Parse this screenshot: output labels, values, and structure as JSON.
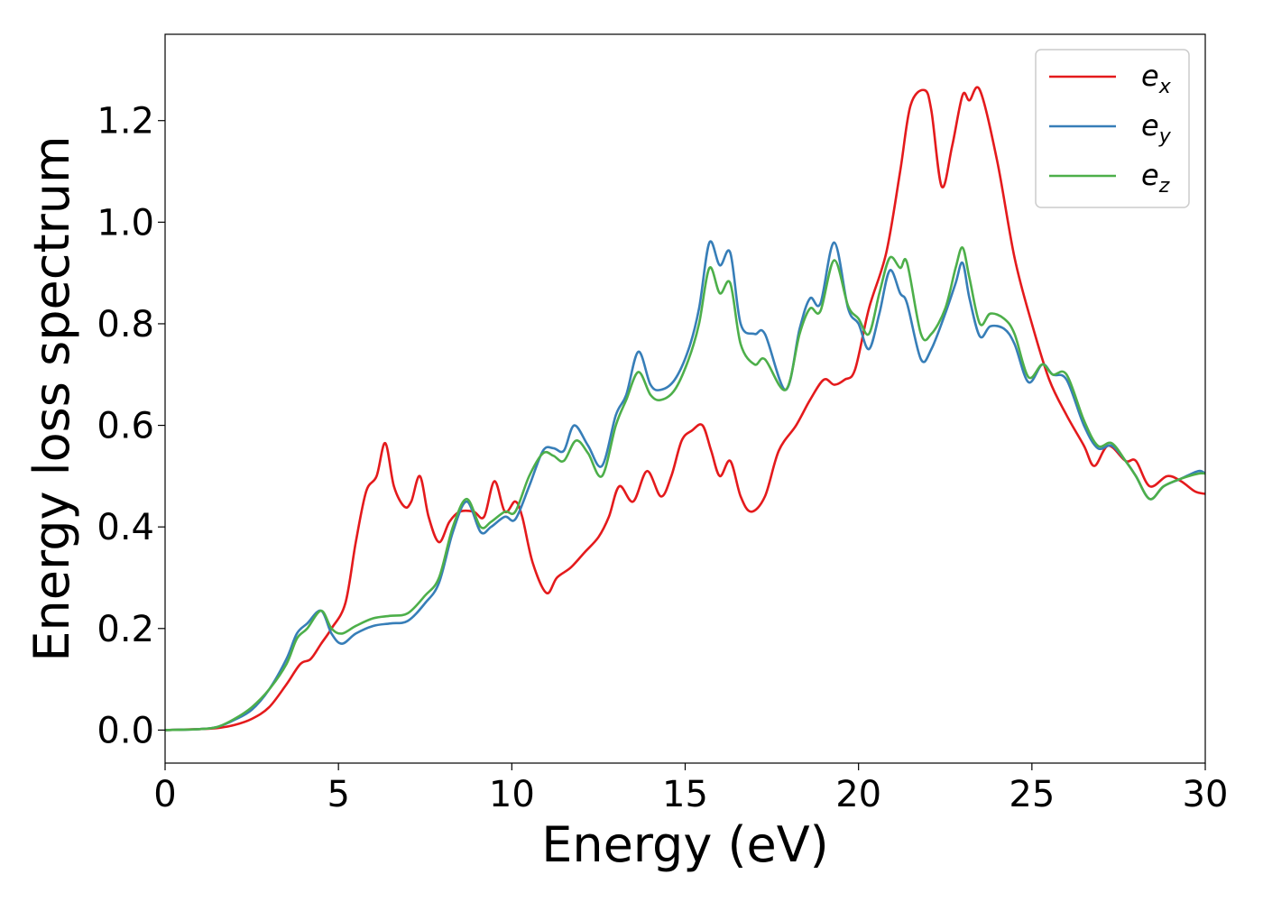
{
  "chart_data": {
    "type": "line",
    "xlabel": "Energy (eV)",
    "ylabel": "Energy loss spectrum",
    "xlim": [
      0,
      30
    ],
    "ylim": [
      -0.065,
      1.37
    ],
    "xticks": [
      0,
      5,
      10,
      15,
      20,
      25,
      30
    ],
    "xtick_labels": [
      "0",
      "5",
      "10",
      "15",
      "20",
      "25",
      "30"
    ],
    "yticks": [
      0.0,
      0.2,
      0.4,
      0.6,
      0.8,
      1.0,
      1.2
    ],
    "ytick_labels": [
      "0.0",
      "0.2",
      "0.4",
      "0.6",
      "0.8",
      "1.0",
      "1.2"
    ],
    "grid": false,
    "legend_position": "top-right",
    "series": [
      {
        "name": "e_x",
        "label_base": "e",
        "label_sub": "x",
        "color": "#e41a1c",
        "points": [
          [
            0,
            0
          ],
          [
            1,
            0.002
          ],
          [
            1.5,
            0.004
          ],
          [
            2,
            0.01
          ],
          [
            2.5,
            0.022
          ],
          [
            3,
            0.045
          ],
          [
            3.5,
            0.09
          ],
          [
            3.9,
            0.13
          ],
          [
            4.2,
            0.14
          ],
          [
            4.5,
            0.17
          ],
          [
            4.8,
            0.2
          ],
          [
            5.2,
            0.25
          ],
          [
            5.5,
            0.37
          ],
          [
            5.8,
            0.47
          ],
          [
            6.1,
            0.5
          ],
          [
            6.35,
            0.565
          ],
          [
            6.6,
            0.48
          ],
          [
            6.9,
            0.44
          ],
          [
            7.1,
            0.45
          ],
          [
            7.35,
            0.5
          ],
          [
            7.6,
            0.42
          ],
          [
            7.9,
            0.37
          ],
          [
            8.2,
            0.41
          ],
          [
            8.5,
            0.43
          ],
          [
            8.9,
            0.43
          ],
          [
            9.2,
            0.42
          ],
          [
            9.5,
            0.49
          ],
          [
            9.8,
            0.43
          ],
          [
            10.1,
            0.45
          ],
          [
            10.3,
            0.42
          ],
          [
            10.6,
            0.33
          ],
          [
            11.0,
            0.27
          ],
          [
            11.3,
            0.3
          ],
          [
            11.7,
            0.32
          ],
          [
            12.1,
            0.35
          ],
          [
            12.5,
            0.38
          ],
          [
            12.8,
            0.42
          ],
          [
            13.1,
            0.48
          ],
          [
            13.5,
            0.45
          ],
          [
            13.9,
            0.51
          ],
          [
            14.3,
            0.46
          ],
          [
            14.6,
            0.5
          ],
          [
            14.9,
            0.57
          ],
          [
            15.2,
            0.59
          ],
          [
            15.5,
            0.6
          ],
          [
            15.75,
            0.55
          ],
          [
            16.0,
            0.5
          ],
          [
            16.3,
            0.53
          ],
          [
            16.6,
            0.46
          ],
          [
            16.9,
            0.43
          ],
          [
            17.3,
            0.46
          ],
          [
            17.7,
            0.55
          ],
          [
            18.2,
            0.6
          ],
          [
            18.6,
            0.65
          ],
          [
            19.0,
            0.69
          ],
          [
            19.3,
            0.68
          ],
          [
            19.6,
            0.69
          ],
          [
            19.9,
            0.71
          ],
          [
            20.3,
            0.83
          ],
          [
            20.8,
            0.94
          ],
          [
            21.2,
            1.1
          ],
          [
            21.5,
            1.23
          ],
          [
            21.9,
            1.26
          ],
          [
            22.1,
            1.22
          ],
          [
            22.4,
            1.07
          ],
          [
            22.7,
            1.15
          ],
          [
            23.0,
            1.25
          ],
          [
            23.2,
            1.24
          ],
          [
            23.5,
            1.26
          ],
          [
            24.0,
            1.12
          ],
          [
            24.5,
            0.93
          ],
          [
            25.0,
            0.8
          ],
          [
            25.5,
            0.69
          ],
          [
            26.0,
            0.62
          ],
          [
            26.5,
            0.56
          ],
          [
            26.8,
            0.52
          ],
          [
            27.2,
            0.56
          ],
          [
            27.7,
            0.53
          ],
          [
            28.0,
            0.53
          ],
          [
            28.4,
            0.48
          ],
          [
            28.9,
            0.5
          ],
          [
            29.3,
            0.49
          ],
          [
            29.7,
            0.47
          ],
          [
            30,
            0.465
          ]
        ]
      },
      {
        "name": "e_y",
        "label_base": "e",
        "label_sub": "y",
        "color": "#377eb8",
        "points": [
          [
            0,
            0
          ],
          [
            1,
            0.002
          ],
          [
            1.5,
            0.006
          ],
          [
            2,
            0.02
          ],
          [
            2.5,
            0.04
          ],
          [
            3,
            0.08
          ],
          [
            3.5,
            0.14
          ],
          [
            3.8,
            0.19
          ],
          [
            4.1,
            0.21
          ],
          [
            4.5,
            0.235
          ],
          [
            4.8,
            0.19
          ],
          [
            5.1,
            0.17
          ],
          [
            5.5,
            0.19
          ],
          [
            6.0,
            0.205
          ],
          [
            6.5,
            0.21
          ],
          [
            7.0,
            0.215
          ],
          [
            7.5,
            0.25
          ],
          [
            7.9,
            0.29
          ],
          [
            8.3,
            0.39
          ],
          [
            8.7,
            0.45
          ],
          [
            9.1,
            0.39
          ],
          [
            9.4,
            0.4
          ],
          [
            9.8,
            0.42
          ],
          [
            10.1,
            0.415
          ],
          [
            10.5,
            0.48
          ],
          [
            10.9,
            0.55
          ],
          [
            11.2,
            0.555
          ],
          [
            11.5,
            0.55
          ],
          [
            11.8,
            0.6
          ],
          [
            12.2,
            0.56
          ],
          [
            12.6,
            0.52
          ],
          [
            13.0,
            0.62
          ],
          [
            13.3,
            0.66
          ],
          [
            13.65,
            0.745
          ],
          [
            14.0,
            0.68
          ],
          [
            14.3,
            0.67
          ],
          [
            14.7,
            0.69
          ],
          [
            15.1,
            0.75
          ],
          [
            15.4,
            0.83
          ],
          [
            15.7,
            0.96
          ],
          [
            16.0,
            0.915
          ],
          [
            16.3,
            0.94
          ],
          [
            16.6,
            0.8
          ],
          [
            17.0,
            0.78
          ],
          [
            17.3,
            0.78
          ],
          [
            17.9,
            0.67
          ],
          [
            18.3,
            0.79
          ],
          [
            18.6,
            0.85
          ],
          [
            18.9,
            0.84
          ],
          [
            19.3,
            0.96
          ],
          [
            19.7,
            0.83
          ],
          [
            20.0,
            0.8
          ],
          [
            20.3,
            0.75
          ],
          [
            20.6,
            0.82
          ],
          [
            20.9,
            0.905
          ],
          [
            21.2,
            0.86
          ],
          [
            21.4,
            0.84
          ],
          [
            21.8,
            0.73
          ],
          [
            22.1,
            0.75
          ],
          [
            22.5,
            0.82
          ],
          [
            22.8,
            0.88
          ],
          [
            23.0,
            0.92
          ],
          [
            23.2,
            0.85
          ],
          [
            23.5,
            0.775
          ],
          [
            23.8,
            0.795
          ],
          [
            24.2,
            0.79
          ],
          [
            24.5,
            0.76
          ],
          [
            24.9,
            0.685
          ],
          [
            25.3,
            0.72
          ],
          [
            25.6,
            0.7
          ],
          [
            26.0,
            0.69
          ],
          [
            26.5,
            0.6
          ],
          [
            26.9,
            0.555
          ],
          [
            27.3,
            0.56
          ],
          [
            27.7,
            0.53
          ],
          [
            28.0,
            0.5
          ],
          [
            28.4,
            0.455
          ],
          [
            28.8,
            0.48
          ],
          [
            29.3,
            0.495
          ],
          [
            29.8,
            0.51
          ],
          [
            30,
            0.505
          ]
        ]
      },
      {
        "name": "e_z",
        "label_base": "e",
        "label_sub": "z",
        "color": "#4daf4a",
        "points": [
          [
            0,
            0
          ],
          [
            1,
            0.002
          ],
          [
            1.5,
            0.006
          ],
          [
            2,
            0.022
          ],
          [
            2.5,
            0.045
          ],
          [
            3,
            0.08
          ],
          [
            3.5,
            0.13
          ],
          [
            3.8,
            0.18
          ],
          [
            4.1,
            0.2
          ],
          [
            4.5,
            0.235
          ],
          [
            4.8,
            0.2
          ],
          [
            5.1,
            0.19
          ],
          [
            5.5,
            0.205
          ],
          [
            6.0,
            0.22
          ],
          [
            6.5,
            0.225
          ],
          [
            7.0,
            0.23
          ],
          [
            7.5,
            0.265
          ],
          [
            7.9,
            0.3
          ],
          [
            8.3,
            0.4
          ],
          [
            8.7,
            0.455
          ],
          [
            9.1,
            0.4
          ],
          [
            9.4,
            0.41
          ],
          [
            9.8,
            0.43
          ],
          [
            10.1,
            0.43
          ],
          [
            10.5,
            0.5
          ],
          [
            10.9,
            0.545
          ],
          [
            11.2,
            0.54
          ],
          [
            11.5,
            0.53
          ],
          [
            11.85,
            0.57
          ],
          [
            12.2,
            0.545
          ],
          [
            12.6,
            0.5
          ],
          [
            13.0,
            0.6
          ],
          [
            13.3,
            0.65
          ],
          [
            13.65,
            0.705
          ],
          [
            14.0,
            0.66
          ],
          [
            14.3,
            0.65
          ],
          [
            14.7,
            0.67
          ],
          [
            15.1,
            0.73
          ],
          [
            15.4,
            0.8
          ],
          [
            15.7,
            0.91
          ],
          [
            16.0,
            0.86
          ],
          [
            16.3,
            0.88
          ],
          [
            16.6,
            0.76
          ],
          [
            17.0,
            0.72
          ],
          [
            17.3,
            0.73
          ],
          [
            17.9,
            0.67
          ],
          [
            18.3,
            0.78
          ],
          [
            18.6,
            0.83
          ],
          [
            18.9,
            0.825
          ],
          [
            19.3,
            0.925
          ],
          [
            19.7,
            0.835
          ],
          [
            20.0,
            0.81
          ],
          [
            20.3,
            0.78
          ],
          [
            20.6,
            0.86
          ],
          [
            20.9,
            0.93
          ],
          [
            21.2,
            0.91
          ],
          [
            21.4,
            0.92
          ],
          [
            21.8,
            0.78
          ],
          [
            22.1,
            0.78
          ],
          [
            22.5,
            0.83
          ],
          [
            22.8,
            0.91
          ],
          [
            23.0,
            0.95
          ],
          [
            23.2,
            0.89
          ],
          [
            23.5,
            0.8
          ],
          [
            23.8,
            0.82
          ],
          [
            24.2,
            0.81
          ],
          [
            24.5,
            0.78
          ],
          [
            24.9,
            0.695
          ],
          [
            25.3,
            0.72
          ],
          [
            25.6,
            0.7
          ],
          [
            26.0,
            0.7
          ],
          [
            26.5,
            0.61
          ],
          [
            26.9,
            0.56
          ],
          [
            27.3,
            0.565
          ],
          [
            27.7,
            0.53
          ],
          [
            28.0,
            0.5
          ],
          [
            28.4,
            0.455
          ],
          [
            28.8,
            0.48
          ],
          [
            29.3,
            0.495
          ],
          [
            29.8,
            0.505
          ],
          [
            30,
            0.505
          ]
        ]
      }
    ]
  }
}
